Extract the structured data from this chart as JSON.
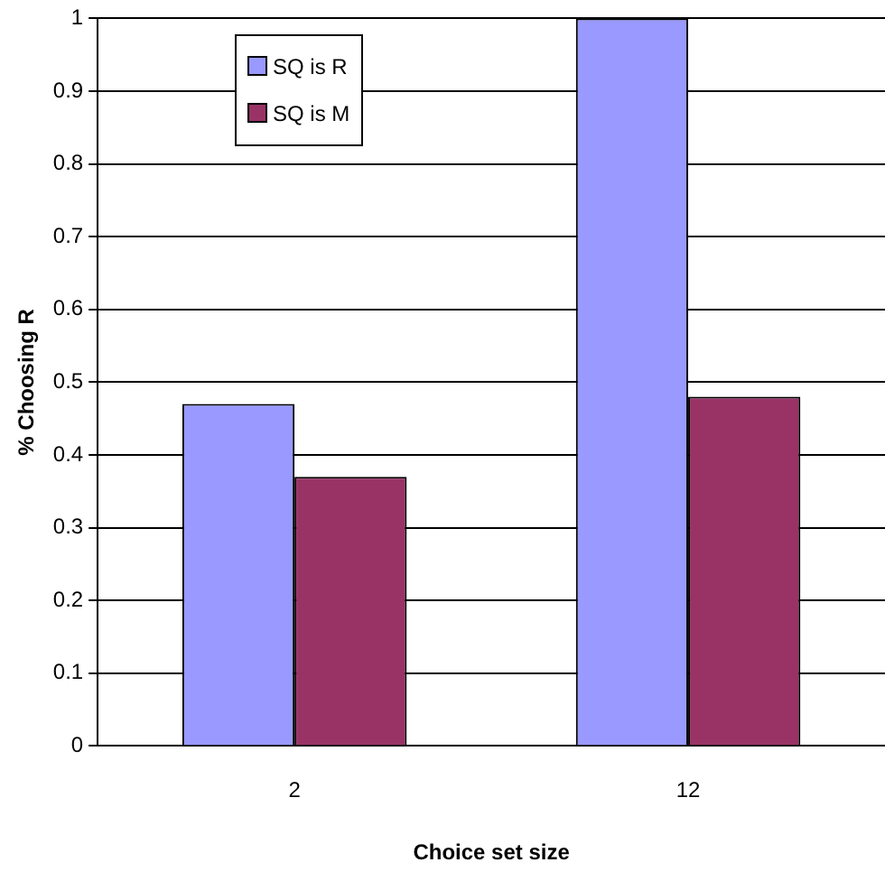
{
  "chart_data": {
    "type": "bar",
    "xlabel": "Choice set size",
    "ylabel": "% Choosing R",
    "categories": [
      "2",
      "12"
    ],
    "series": [
      {
        "name": "SQ is R",
        "color": "#9999ff",
        "values": [
          0.47,
          1
        ]
      },
      {
        "name": "SQ is M",
        "color": "#993366",
        "values": [
          0.37,
          0.48
        ]
      }
    ],
    "ylim": [
      0,
      1
    ],
    "yticks": [
      0,
      0.1,
      0.2,
      0.3,
      0.4,
      0.5,
      0.6,
      0.7,
      0.8,
      0.9,
      1
    ],
    "grid": "y",
    "legend": "top left"
  }
}
